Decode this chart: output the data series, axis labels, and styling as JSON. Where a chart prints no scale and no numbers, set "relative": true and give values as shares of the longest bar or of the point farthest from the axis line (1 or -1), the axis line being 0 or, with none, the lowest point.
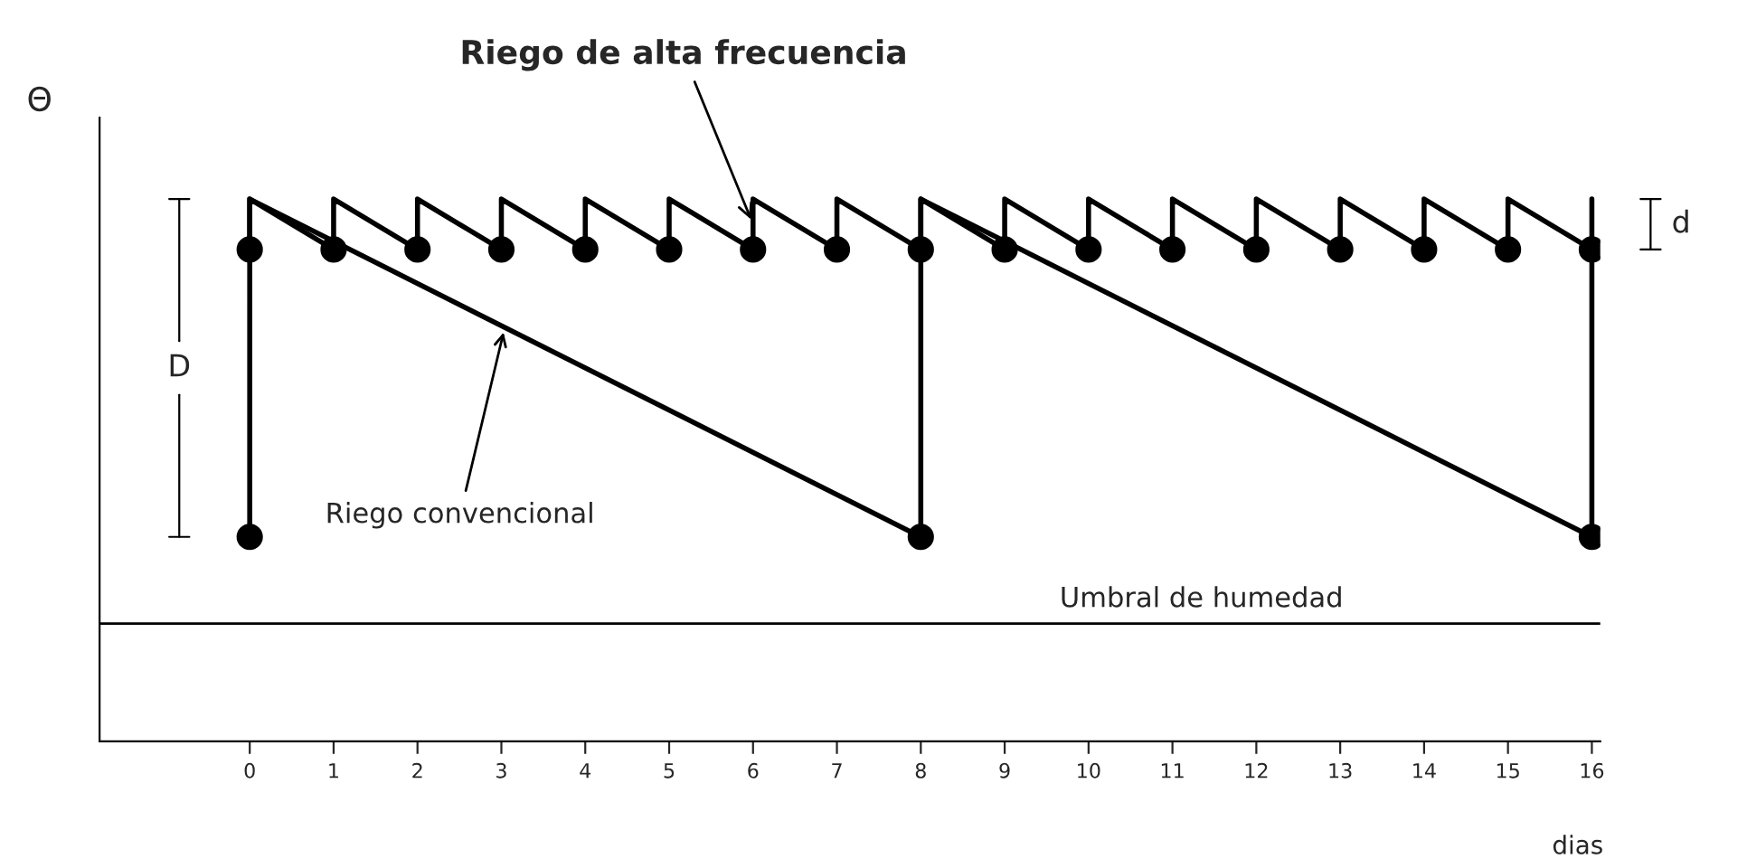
{
  "chart_data": {
    "type": "line",
    "relative": true,
    "ylabel": "Θ",
    "xlabel": "dias",
    "xlim": [
      -1.79,
      16.1
    ],
    "xticks": [
      0,
      1,
      2,
      3,
      4,
      5,
      6,
      7,
      8,
      9,
      10,
      11,
      12,
      13,
      14,
      15,
      16
    ],
    "tick_labels": "x",
    "grid": false,
    "legend": false,
    "series": [
      {
        "name": "Riego de alta frecuencia",
        "color": "#000000",
        "x": [
          0,
          0,
          1,
          1,
          2,
          2,
          3,
          3,
          4,
          4,
          5,
          5,
          6,
          6,
          7,
          7,
          8,
          8,
          9,
          9,
          10,
          10,
          11,
          11,
          12,
          12,
          13,
          13,
          14,
          14,
          15,
          15,
          16
        ],
        "values": [
          0.907,
          1,
          0.907,
          1,
          0.907,
          1,
          0.907,
          1,
          0.907,
          1,
          0.907,
          1,
          0.907,
          1,
          0.907,
          1,
          0.907,
          1,
          0.907,
          1,
          0.907,
          1,
          0.907,
          1,
          0.907,
          1,
          0.907,
          1,
          0.907,
          1,
          0.907,
          1,
          0.907
        ]
      },
      {
        "name": "Riego convencional",
        "color": "#000000",
        "x": [
          0,
          0,
          8,
          8,
          16,
          16
        ],
        "values": [
          0.377,
          1,
          0.377,
          1,
          0.377,
          1
        ]
      },
      {
        "type": "scatter",
        "marker": "circle",
        "color": "#000000",
        "x": [
          0,
          1,
          2,
          3,
          4,
          5,
          6,
          7,
          8,
          9,
          10,
          11,
          12,
          13,
          14,
          15,
          16,
          0,
          8,
          16
        ],
        "values": [
          0.907,
          0.907,
          0.907,
          0.907,
          0.907,
          0.907,
          0.907,
          0.907,
          0.907,
          0.907,
          0.907,
          0.907,
          0.907,
          0.907,
          0.907,
          0.907,
          0.907,
          0.377,
          0.377,
          0.377
        ]
      }
    ],
    "ref_lines": [
      {
        "axis": "y",
        "value": 0.217,
        "label": "Umbral de humedad",
        "color": "#000000",
        "line_style": "solid"
      }
    ],
    "annotations": [
      "D",
      "d"
    ]
  }
}
